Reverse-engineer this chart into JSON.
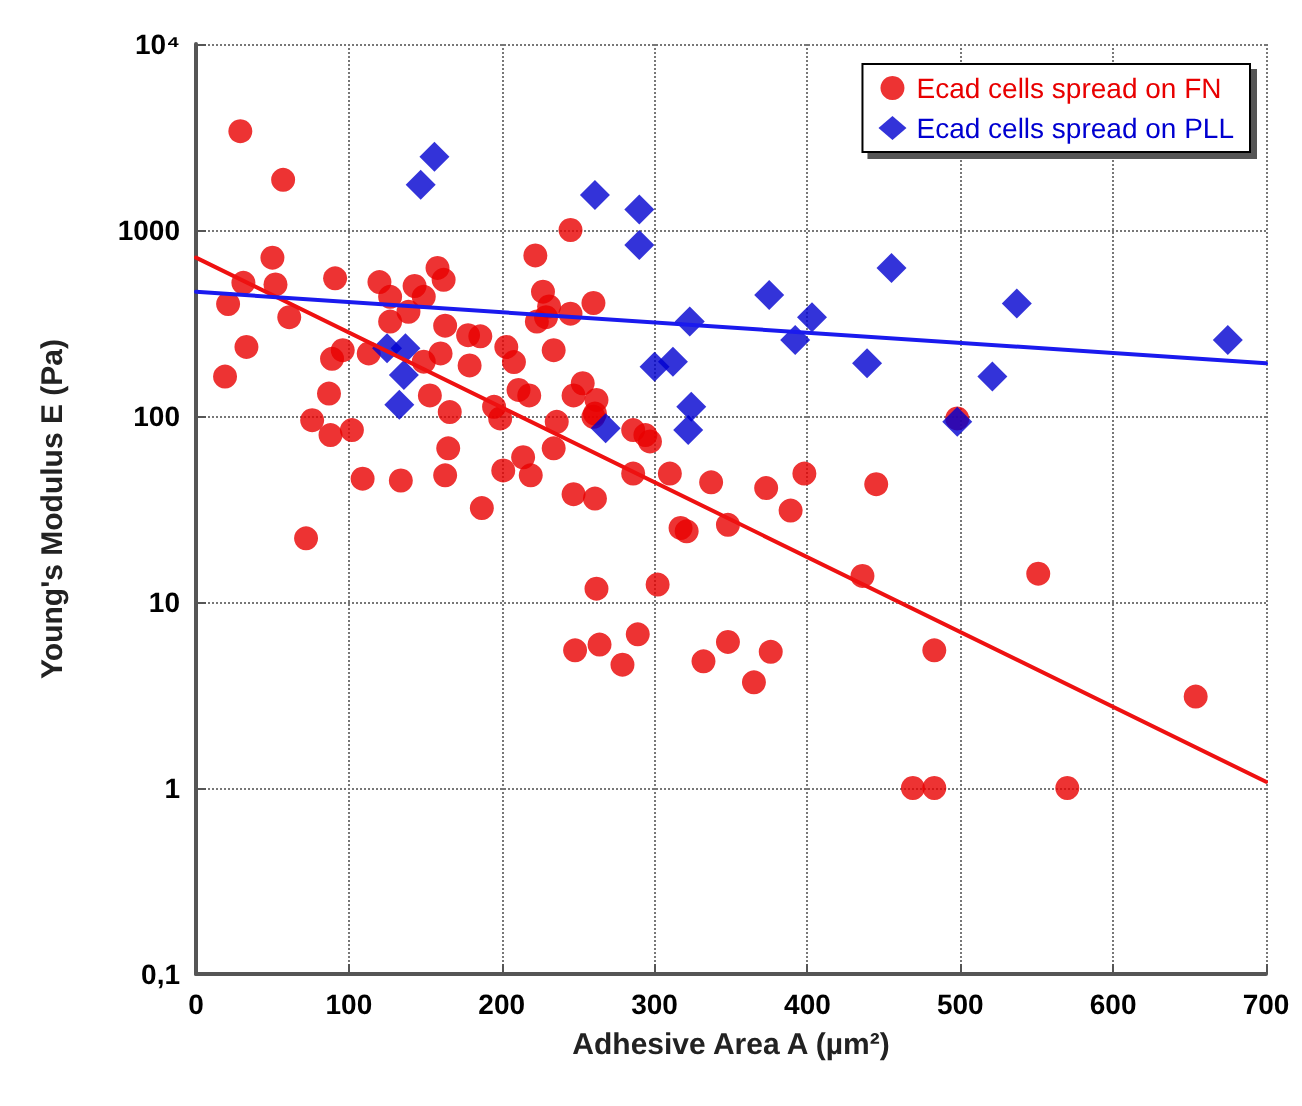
{
  "chart_data": {
    "type": "scatter",
    "xlabel": "Adhesive Area A (µm²)",
    "ylabel": "Young's Modulus E (Pa)",
    "xlim": [
      0,
      700
    ],
    "xticks": [
      0,
      100,
      200,
      300,
      400,
      500,
      600,
      700
    ],
    "ylim": [
      0.1,
      10000
    ],
    "yticks": [
      {
        "value": 0.1,
        "label": "0,1"
      },
      1,
      10,
      100,
      1000,
      {
        "value": 10000,
        "label": "10⁴"
      }
    ],
    "log": "y",
    "grid": true,
    "legend": "top right",
    "series": [
      {
        "name": "Ecad cells spread on FN",
        "color": "#e80000",
        "marker": "circle",
        "x": [
          29,
          57,
          50,
          31,
          21,
          52,
          61,
          33,
          19,
          91,
          120,
          127,
          143,
          149,
          158,
          162,
          127,
          139,
          163,
          178,
          186,
          203,
          208,
          179,
          160,
          149,
          113,
          96,
          89,
          87,
          76,
          88,
          102,
          153,
          166,
          165,
          109,
          134,
          163,
          187,
          199,
          211,
          218,
          222,
          227,
          223,
          214,
          201,
          219,
          195,
          72,
          234,
          236,
          247,
          261,
          261,
          286,
          294,
          297,
          286,
          310,
          317,
          321,
          337,
          348,
          262,
          302,
          248,
          264,
          279,
          289,
          332,
          348,
          231,
          229,
          245,
          245,
          260,
          234,
          253,
          247,
          262,
          260,
          373,
          389,
          398,
          445,
          436,
          551,
          483,
          376,
          365,
          654,
          469,
          483,
          570,
          498
        ],
        "values": [
          3400,
          1860,
          710,
          520,
          400,
          510,
          340,
          235,
          163,
          550,
          525,
          437,
          500,
          437,
          625,
          540,
          322,
          363,
          306,
          272,
          268,
          235,
          195,
          187,
          217,
          196,
          217,
          226,
          203,
          132,
          95,
          79,
          84,
          129,
          105,
          67,
          46,
          45,
          48,
          32,
          97,
          138,
          129,
          730,
          466,
          322,
          60,
          51,
          48,
          112,
          22,
          67,
          93,
          38,
          36,
          103,
          84,
          79,
          73,
          49,
          49,
          25,
          24,
          44,
          26,
          11.8,
          12.4,
          5.5,
          5.9,
          4.6,
          6.7,
          4.8,
          6.1,
          388,
          340,
          1000,
          355,
          405,
          226,
          150,
          129,
          122,
          99,
          41,
          31,
          49,
          43,
          13.8,
          14.2,
          5.5,
          5.4,
          3.7,
          3.1,
          1,
          1,
          1,
          97
        ]
      },
      {
        "name": "Ecad cells spread on PLL",
        "color": "#0000d0",
        "marker": "diamond",
        "x": [
          156,
          147,
          125,
          137,
          136,
          133,
          261,
          290,
          290,
          323,
          300,
          312,
          324,
          322,
          268,
          375,
          403,
          392,
          439,
          455,
          537,
          521,
          498,
          675
        ],
        "values": [
          2480,
          1750,
          231,
          231,
          166,
          115,
          1540,
          1290,
          830,
          322,
          184,
          196,
          112,
          84,
          86,
          447,
          340,
          256,
          192,
          625,
          403,
          163,
          93,
          256
        ]
      },
      {
        "type": "line",
        "color": "#ee1111",
        "marker": "none",
        "line_style": "solid",
        "x": [
          0,
          700
        ],
        "values": [
          710,
          1.08
        ]
      },
      {
        "type": "line",
        "color": "#1a1aee",
        "marker": "none",
        "line_style": "solid",
        "x": [
          0,
          700
        ],
        "values": [
          465,
          192
        ]
      }
    ]
  }
}
